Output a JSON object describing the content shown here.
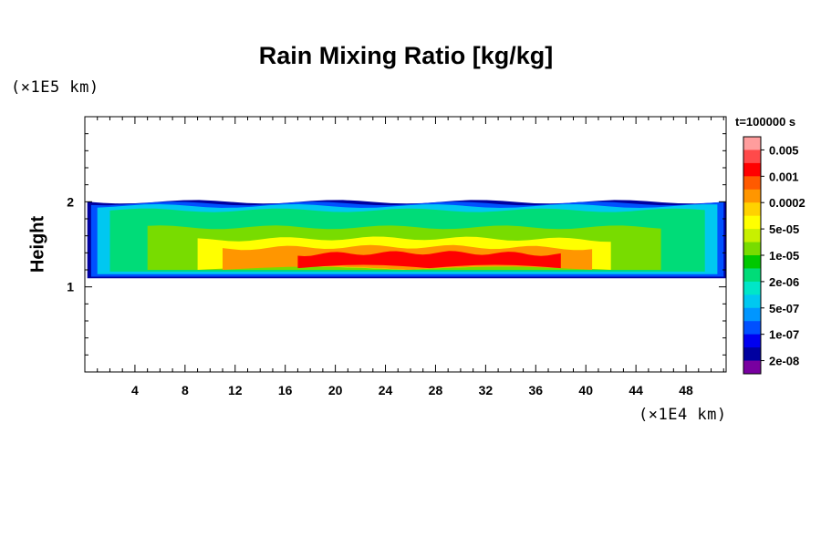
{
  "chart_data": {
    "type": "heatmap",
    "title": "Rain Mixing Ratio [kg/kg]",
    "ylabel": "Height",
    "xlabel": "",
    "x_unit": "(×1E4 km)",
    "y_unit": "(×1E5 km)",
    "time_label": "t=100000 s",
    "xlim": [
      0,
      51.2
    ],
    "ylim": [
      0,
      3.0
    ],
    "x_ticks": [
      4,
      8,
      12,
      16,
      20,
      24,
      28,
      32,
      36,
      40,
      44,
      48
    ],
    "y_ticks": [
      1,
      2
    ],
    "grid": false,
    "colorbar": {
      "position": "right",
      "labels": [
        "0.005",
        "0.001",
        "0.0002",
        "5e-05",
        "1e-05",
        "2e-06",
        "5e-07",
        "1e-07",
        "2e-08"
      ],
      "colors": [
        "#ff9d9d",
        "#ff4a4a",
        "#ff0000",
        "#ff5a00",
        "#ff9600",
        "#ffd200",
        "#ffff00",
        "#c8f000",
        "#78dc00",
        "#00c800",
        "#00dc78",
        "#00e6c8",
        "#00c8f0",
        "#0096ff",
        "#0050ff",
        "#0000f0",
        "#0000a0",
        "#7800a0"
      ]
    },
    "field_description_bands": [
      {
        "level": "2e-08",
        "color": "#0000a0",
        "x_range": [
          0.2,
          51.2
        ],
        "y_range": [
          1.1,
          2.0
        ]
      },
      {
        "level": "1e-07",
        "color": "#0050ff",
        "x_range": [
          0.5,
          51.0
        ],
        "y_range": [
          1.12,
          1.98
        ]
      },
      {
        "level": "5e-07",
        "color": "#00c8f0",
        "x_range": [
          1.0,
          50.5
        ],
        "y_range": [
          1.15,
          1.95
        ]
      },
      {
        "level": "2e-06",
        "color": "#00dc78",
        "x_range": [
          2.0,
          49.5
        ],
        "y_range": [
          1.18,
          1.9
        ]
      },
      {
        "level": "1e-05",
        "color": "#78dc00",
        "x_range": [
          5.0,
          46.0
        ],
        "y_range": [
          1.2,
          1.7
        ]
      },
      {
        "level": "5e-05",
        "color": "#ffff00",
        "x_range": [
          9.0,
          42.0
        ],
        "y_range": [
          1.2,
          1.55
        ]
      },
      {
        "level": "0.0002",
        "color": "#ff9600",
        "x_range": [
          11.0,
          40.5
        ],
        "y_range": [
          1.2,
          1.45
        ]
      },
      {
        "level": "0.001",
        "color": "#ff0000",
        "x_range": [
          17.0,
          38.0
        ],
        "y_range": [
          1.22,
          1.38
        ]
      }
    ]
  }
}
